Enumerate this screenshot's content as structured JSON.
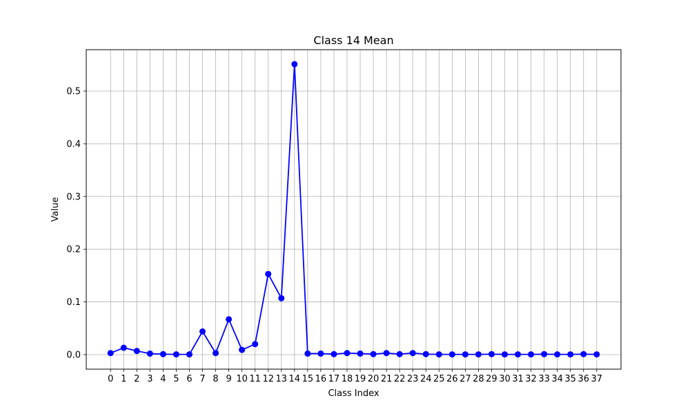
{
  "chart_data": {
    "type": "line",
    "title": "Class 14 Mean",
    "xlabel": "Class Index",
    "ylabel": "Value",
    "x": [
      0,
      1,
      2,
      3,
      4,
      5,
      6,
      7,
      8,
      9,
      10,
      11,
      12,
      13,
      14,
      15,
      16,
      17,
      18,
      19,
      20,
      21,
      22,
      23,
      24,
      25,
      26,
      27,
      28,
      29,
      30,
      31,
      32,
      33,
      34,
      35,
      36,
      37
    ],
    "x_tick_labels": [
      "0",
      "1",
      "2",
      "3",
      "4",
      "5",
      "6",
      "7",
      "8",
      "9",
      "10",
      "11",
      "12",
      "13",
      "14",
      "15",
      "16",
      "17",
      "18",
      "19",
      "20",
      "21",
      "22",
      "23",
      "24",
      "25",
      "26",
      "27",
      "28",
      "29",
      "30",
      "31",
      "32",
      "33",
      "34",
      "35",
      "36",
      "37"
    ],
    "series": [
      {
        "values": [
          0.003,
          0.013,
          0.007,
          0.002,
          0.001,
          0.0005,
          0.0005,
          0.044,
          0.003,
          0.067,
          0.009,
          0.02,
          0.153,
          0.107,
          0.551,
          0.002,
          0.002,
          0.001,
          0.003,
          0.002,
          0.001,
          0.003,
          0.001,
          0.003,
          0.001,
          0.0005,
          0.0005,
          0.0005,
          0.0005,
          0.001,
          0.0005,
          0.0005,
          0.0005,
          0.001,
          0.0005,
          0.0005,
          0.001,
          0.0005
        ],
        "color": "#0000ff"
      }
    ],
    "xlim": [
      -1.85,
      38.85
    ],
    "ylim": [
      -0.0275,
      0.5785
    ],
    "y_ticks": [
      0.0,
      0.1,
      0.2,
      0.3,
      0.4,
      0.5
    ],
    "y_tick_labels": [
      "0.0",
      "0.1",
      "0.2",
      "0.3",
      "0.4",
      "0.5"
    ],
    "grid": true,
    "grid_color": "#b0b0b0",
    "marker": "circle",
    "legend": "none"
  }
}
